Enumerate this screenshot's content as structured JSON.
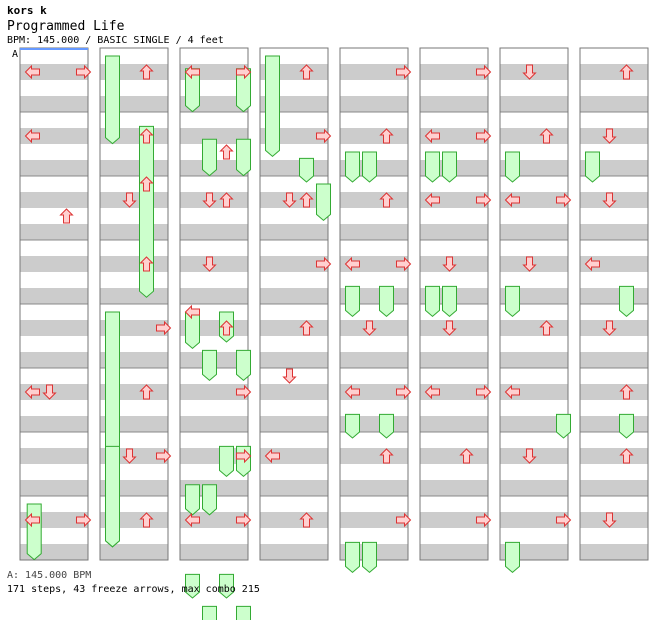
{
  "header": {
    "artist": "kors k",
    "title": "Programmed Life",
    "meta": "BPM: 145.000 / BASIC SINGLE / 4 feet"
  },
  "chart_data": {
    "type": "table",
    "description_note": "",
    "bpm_marker_label": "A",
    "columns": 8,
    "measures_per_column": 8,
    "lanes": [
      "left",
      "down",
      "up",
      "right"
    ],
    "colors": {
      "arrow_fill": "#ffd0d0",
      "arrow_stroke": "#dd3333",
      "freeze_fill": "#ccffcc",
      "freeze_stroke": "#33aa33",
      "stripe": "#cccccc",
      "bpm_marker": "#6699ff"
    },
    "notes": [
      [
        [
          0,
          0,
          1
        ],
        [
          0,
          3,
          1
        ],
        [
          1,
          0,
          1
        ],
        [
          2,
          2,
          0.5
        ],
        [
          5,
          0,
          1
        ],
        [
          5,
          1,
          1
        ],
        [
          7,
          0,
          1
        ],
        [
          7,
          3,
          1
        ]
      ],
      [
        [
          0,
          2,
          1
        ],
        [
          1,
          2,
          1
        ],
        [
          2,
          1,
          1
        ],
        [
          2,
          2,
          0
        ],
        [
          3,
          2,
          1
        ],
        [
          4,
          3,
          1
        ],
        [
          5,
          2,
          1
        ],
        [
          6,
          1,
          1
        ],
        [
          6,
          3,
          1
        ],
        [
          7,
          2,
          1
        ]
      ],
      [
        [
          0,
          0,
          1
        ],
        [
          0,
          3,
          1
        ],
        [
          1,
          2,
          0.5
        ],
        [
          2,
          1,
          1
        ],
        [
          2,
          2,
          1
        ],
        [
          3,
          1,
          1
        ],
        [
          4,
          0,
          0
        ],
        [
          4,
          2,
          1
        ],
        [
          5,
          3,
          1
        ],
        [
          6,
          3,
          1
        ],
        [
          7,
          0,
          1
        ],
        [
          7,
          3,
          1
        ]
      ],
      [
        [
          0,
          2,
          1
        ],
        [
          1,
          3,
          1
        ],
        [
          2,
          1,
          1
        ],
        [
          2,
          2,
          1
        ],
        [
          3,
          3,
          1
        ],
        [
          4,
          2,
          1
        ],
        [
          5,
          1,
          0
        ],
        [
          6,
          0,
          1
        ],
        [
          7,
          2,
          1
        ]
      ],
      [
        [
          0,
          3,
          1
        ],
        [
          1,
          2,
          1
        ],
        [
          2,
          2,
          1
        ],
        [
          3,
          0,
          1
        ],
        [
          3,
          3,
          1
        ],
        [
          4,
          1,
          1
        ],
        [
          5,
          0,
          1
        ],
        [
          5,
          3,
          1
        ],
        [
          6,
          2,
          1
        ],
        [
          7,
          3,
          1
        ]
      ],
      [
        [
          0,
          3,
          1
        ],
        [
          1,
          0,
          1
        ],
        [
          1,
          3,
          1
        ],
        [
          2,
          0,
          1
        ],
        [
          2,
          3,
          1
        ],
        [
          3,
          1,
          1
        ],
        [
          4,
          1,
          1
        ],
        [
          5,
          0,
          1
        ],
        [
          5,
          3,
          1
        ],
        [
          6,
          2,
          1
        ],
        [
          7,
          3,
          1
        ]
      ],
      [
        [
          0,
          1,
          1
        ],
        [
          1,
          2,
          1
        ],
        [
          2,
          0,
          1
        ],
        [
          2,
          3,
          1
        ],
        [
          3,
          1,
          1
        ],
        [
          4,
          2,
          1
        ],
        [
          5,
          0,
          1
        ],
        [
          6,
          1,
          1
        ],
        [
          7,
          3,
          1
        ]
      ],
      [
        [
          0,
          2,
          1
        ],
        [
          1,
          1,
          1
        ],
        [
          2,
          1,
          1
        ],
        [
          3,
          0,
          1
        ],
        [
          4,
          1,
          1
        ],
        [
          5,
          2,
          1
        ],
        [
          6,
          2,
          1
        ],
        [
          7,
          1,
          1
        ]
      ]
    ],
    "freezes": [
      [
        [
          7,
          0.1,
          7.9,
          3,
          0
        ]
      ],
      [
        [
          0,
          0,
          1.4,
          3,
          1
        ],
        [
          1.1,
          2,
          3.8,
          2,
          1
        ],
        [
          4,
          0,
          7.7,
          0,
          1
        ],
        [
          6.1,
          0,
          7.7,
          3,
          1
        ]
      ],
      [
        [
          0.2,
          0,
          0.9,
          0,
          1
        ],
        [
          0.2,
          3,
          0.9,
          3,
          1
        ],
        [
          1.3,
          1,
          1.9,
          1,
          1
        ],
        [
          1.3,
          3,
          1.9,
          3,
          1
        ],
        [
          4,
          0,
          4.6,
          0,
          1
        ],
        [
          4,
          2,
          4.5,
          2,
          1
        ],
        [
          4.6,
          1,
          5.1,
          1,
          1
        ],
        [
          4.6,
          3,
          5.1,
          3,
          1
        ],
        [
          6.1,
          2,
          6.6,
          2,
          1
        ],
        [
          6.1,
          3,
          6.6,
          3,
          1
        ],
        [
          6.7,
          0,
          7.2,
          0,
          1
        ],
        [
          6.7,
          1,
          7.2,
          1,
          1
        ],
        [
          8.1,
          0,
          8.5,
          0,
          1
        ],
        [
          8.1,
          2,
          8.5,
          2,
          1
        ],
        [
          8.6,
          1,
          9.1,
          1,
          1
        ],
        [
          8.6,
          3,
          9.1,
          3,
          1
        ]
      ],
      [
        [
          0,
          0,
          1.6,
          0,
          1
        ],
        [
          1.6,
          2,
          2,
          2,
          0
        ],
        [
          2,
          3,
          2.6,
          3,
          1
        ]
      ],
      [
        [
          1.5,
          0,
          2.0,
          0,
          1
        ],
        [
          1.5,
          1,
          2.0,
          1,
          1
        ],
        [
          3.6,
          0,
          4.1,
          0,
          1
        ],
        [
          3.6,
          2,
          4.1,
          2,
          1
        ],
        [
          5.6,
          0,
          6.0,
          0,
          1
        ],
        [
          5.6,
          2,
          6.0,
          2,
          1
        ],
        [
          7.6,
          0,
          8.1,
          0,
          1
        ],
        [
          7.6,
          1,
          8.1,
          1,
          1
        ]
      ],
      [
        [
          1.5,
          0,
          2.0,
          0,
          1
        ],
        [
          1.5,
          1,
          2.0,
          1,
          1
        ],
        [
          3.6,
          0,
          4.1,
          0,
          1
        ],
        [
          3.6,
          1,
          4.1,
          1,
          1
        ]
      ],
      [
        [
          1.5,
          0,
          2.0,
          0,
          1
        ],
        [
          3.6,
          0,
          4.1,
          0,
          1
        ],
        [
          5.6,
          3,
          6.0,
          3,
          1
        ],
        [
          7.6,
          0,
          8.1,
          0,
          1
        ]
      ],
      [
        [
          1.5,
          0,
          2.0,
          0,
          1
        ],
        [
          3.6,
          2,
          4.1,
          2,
          1
        ],
        [
          5.6,
          2,
          6.0,
          2,
          1
        ]
      ]
    ]
  },
  "footer": {
    "bpm": "A: 145.000 BPM",
    "stats": "171 steps, 43 freeze arrows, max combo 215"
  }
}
